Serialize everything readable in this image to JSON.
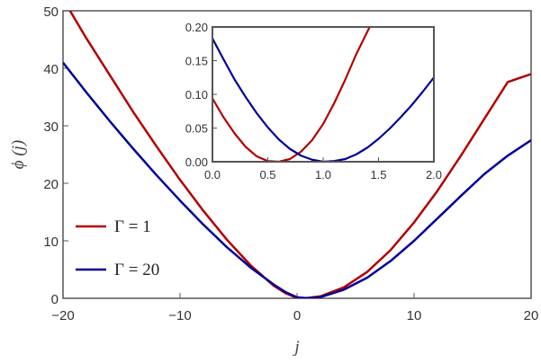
{
  "chart_data": [
    {
      "type": "line",
      "panel": "main",
      "xlabel": "j",
      "ylabel": "ϕ (j)",
      "xlim": [
        -20,
        20
      ],
      "ylim": [
        0,
        50
      ],
      "xticks": [
        -20,
        -10,
        0,
        10,
        20
      ],
      "xtick_labels": [
        "−20",
        "−10",
        "0",
        "10",
        "20"
      ],
      "yticks": [
        0,
        10,
        20,
        30,
        40,
        50
      ],
      "ytick_labels": [
        "0",
        "10",
        "20",
        "30",
        "40",
        "50"
      ],
      "legend_position": "lower-left",
      "series": [
        {
          "name": "Γ = 1",
          "color": "#b30000",
          "x": [
            -20,
            -19.4,
            -18,
            -16,
            -14,
            -12,
            -10,
            -8,
            -6,
            -4,
            -2,
            -1,
            0,
            0.6,
            2,
            4,
            6,
            8,
            10,
            12,
            14,
            16,
            18,
            20
          ],
          "y": [
            52.0,
            50.0,
            45.2,
            38.8,
            32.4,
            26.4,
            20.6,
            15.2,
            10.2,
            5.8,
            2.2,
            0.9,
            0.05,
            0.0,
            0.35,
            1.9,
            4.6,
            8.4,
            13.2,
            18.7,
            24.8,
            31.2,
            37.6,
            39.0
          ]
        },
        {
          "name": "Γ = 20",
          "color": "#000099",
          "x": [
            -20,
            -18,
            -16,
            -14,
            -12,
            -10,
            -8,
            -6,
            -4,
            -2,
            -1,
            0,
            1,
            2,
            4,
            6,
            8,
            10,
            12,
            14,
            16,
            18,
            20
          ],
          "y": [
            41.0,
            35.8,
            30.8,
            26.0,
            21.4,
            17.0,
            12.8,
            8.9,
            5.4,
            2.4,
            1.1,
            0.18,
            0.0,
            0.2,
            1.5,
            3.6,
            6.5,
            10.0,
            13.9,
            17.8,
            21.6,
            24.8,
            27.5
          ]
        }
      ]
    },
    {
      "type": "line",
      "panel": "inset",
      "xlim": [
        0,
        2
      ],
      "ylim": [
        0,
        0.2
      ],
      "xticks": [
        0,
        0.5,
        1,
        1.5,
        2
      ],
      "xtick_labels": [
        "0.0",
        "0.5",
        "1.0",
        "1.5",
        "2.0"
      ],
      "yticks": [
        0,
        0.05,
        0.1,
        0.15,
        0.2
      ],
      "ytick_labels": [
        "0.00",
        "0.05",
        "0.10",
        "0.15",
        "0.20"
      ],
      "series": [
        {
          "name": "Γ = 1",
          "color": "#b30000",
          "x": [
            0,
            0.1,
            0.2,
            0.3,
            0.4,
            0.5,
            0.6,
            0.7,
            0.8,
            0.9,
            1.0,
            1.1,
            1.2,
            1.3,
            1.42
          ],
          "y": [
            0.094,
            0.066,
            0.042,
            0.022,
            0.008,
            0.001,
            0.0,
            0.004,
            0.015,
            0.032,
            0.056,
            0.087,
            0.122,
            0.16,
            0.2
          ]
        },
        {
          "name": "Γ = 20",
          "color": "#000099",
          "x": [
            0,
            0.1,
            0.2,
            0.3,
            0.4,
            0.5,
            0.6,
            0.7,
            0.8,
            0.9,
            1.0,
            1.1,
            1.2,
            1.3,
            1.4,
            1.5,
            1.6,
            1.7,
            1.8,
            1.9,
            2.0
          ],
          "y": [
            0.183,
            0.152,
            0.122,
            0.096,
            0.072,
            0.051,
            0.033,
            0.019,
            0.009,
            0.003,
            0.0,
            0.001,
            0.004,
            0.011,
            0.021,
            0.034,
            0.049,
            0.066,
            0.084,
            0.104,
            0.125
          ]
        }
      ]
    }
  ],
  "legend": [
    {
      "symbol": "Γ",
      "rest": " = 1",
      "color": "#b30000"
    },
    {
      "symbol": "Γ",
      "rest": " = 20",
      "color": "#000099"
    }
  ]
}
